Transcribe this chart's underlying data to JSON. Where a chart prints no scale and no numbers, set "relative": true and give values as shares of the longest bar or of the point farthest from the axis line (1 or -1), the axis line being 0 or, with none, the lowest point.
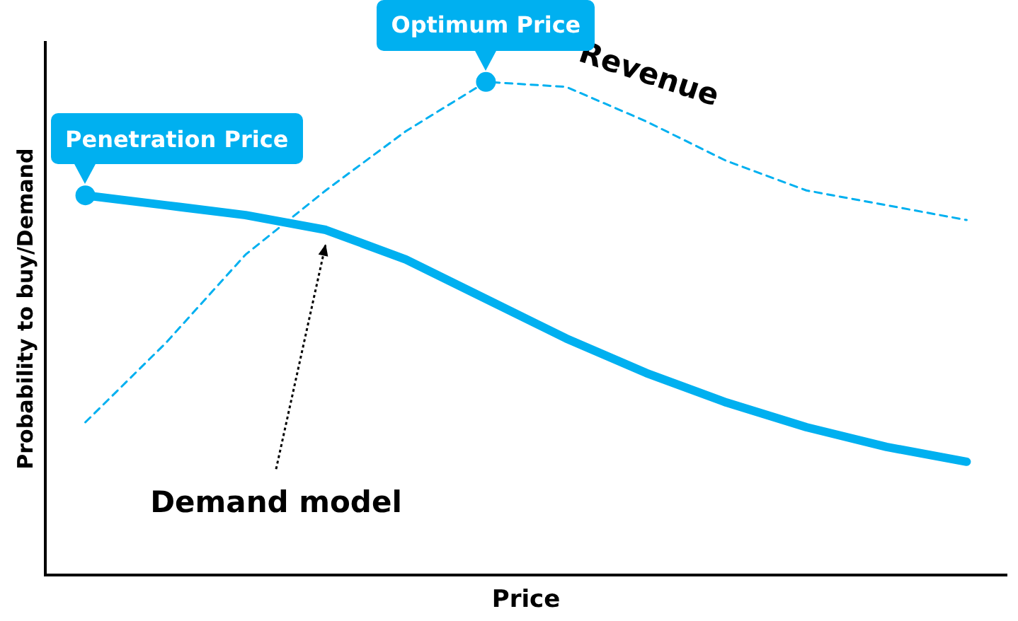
{
  "chart_data": {
    "type": "line",
    "xlabel": "Price",
    "ylabel": "Probability to buy/Demand",
    "relative": true,
    "grid": false,
    "legend": false,
    "categories": [
      null,
      null,
      null,
      null,
      null,
      null,
      null,
      null,
      null,
      null,
      null,
      null
    ],
    "series": [
      {
        "name": "Revenue",
        "color": "#00b0f0",
        "line_style": "dashed",
        "marker": "none",
        "values": [
          0.31,
          0.47,
          0.65,
          0.78,
          0.9,
          1.0,
          0.99,
          0.92,
          0.84,
          0.78,
          0.75,
          0.72
        ]
      },
      {
        "name": "Demand model",
        "color": "#00b0f0",
        "line_style": "solid",
        "marker": "none",
        "values": [
          0.77,
          0.75,
          0.73,
          0.7,
          0.64,
          0.56,
          0.48,
          0.41,
          0.35,
          0.3,
          0.26,
          0.23
        ]
      }
    ],
    "annotations": [
      {
        "text": "Penetration Price",
        "y": 0.77
      },
      {
        "text": "Optimum Price",
        "y": 1.0
      }
    ]
  }
}
